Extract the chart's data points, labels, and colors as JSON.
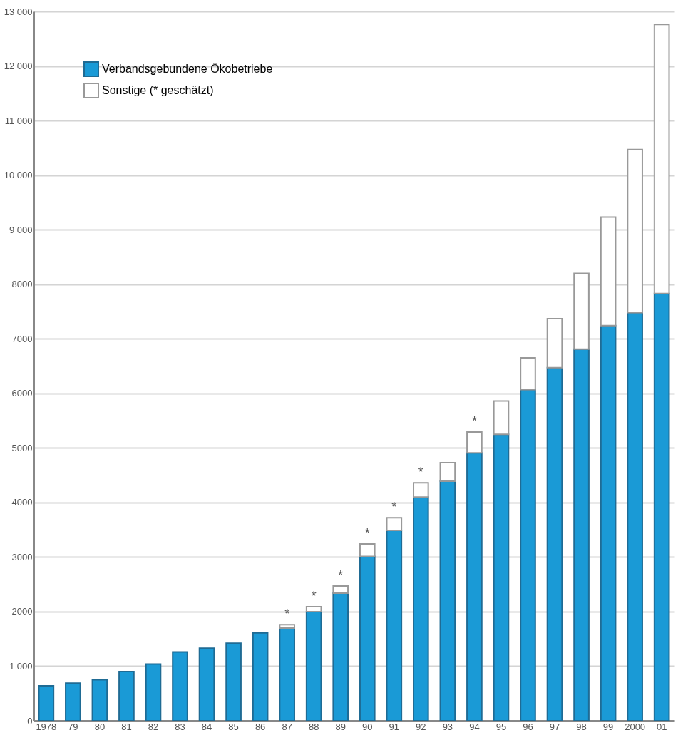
{
  "chart_data": {
    "type": "bar",
    "stacked": true,
    "categories": [
      "1978",
      "79",
      "80",
      "81",
      "82",
      "83",
      "84",
      "85",
      "86",
      "87",
      "88",
      "89",
      "90",
      "91",
      "92",
      "93",
      "94",
      "95",
      "96",
      "97",
      "98",
      "99",
      "2000",
      "01"
    ],
    "series": [
      {
        "name": "Verbandsgebundene Ökobetriebe",
        "color": "#1a9ad6",
        "values": [
          640,
          690,
          750,
          900,
          1040,
          1260,
          1330,
          1420,
          1610,
          1700,
          2000,
          2340,
          3010,
          3490,
          4100,
          4390,
          4910,
          5250,
          6070,
          6470,
          6810,
          7240,
          7480,
          7830
        ]
      },
      {
        "name": "Sonstige (* geschätzt)",
        "color": "#ffffff",
        "values": [
          null,
          null,
          null,
          null,
          null,
          null,
          null,
          null,
          null,
          60,
          90,
          130,
          230,
          230,
          260,
          340,
          380,
          610,
          580,
          900,
          1390,
          1990,
          2990,
          4930
        ]
      }
    ],
    "ylim": [
      0,
      13000
    ],
    "yticks": [
      0,
      {
        "value": 1000,
        "label": "1 000"
      },
      2000,
      3000,
      4000,
      5000,
      6000,
      7000,
      8000,
      {
        "value": 9000,
        "label": "9 000"
      },
      {
        "value": 10000,
        "label": "10 000"
      },
      {
        "value": 11000,
        "label": "11 000"
      },
      {
        "value": 12000,
        "label": "12 000"
      },
      {
        "value": 13000,
        "label": "13 000"
      }
    ],
    "grid": "y",
    "legend": "top left",
    "annotations": [
      {
        "text": "*",
        "x": "87",
        "y": 1760
      },
      {
        "text": "*",
        "x": "88",
        "y": 2090
      },
      {
        "text": "*",
        "x": "89",
        "y": 2470
      },
      {
        "text": "*",
        "x": "90",
        "y": 3240
      },
      {
        "text": "*",
        "x": "91",
        "y": 3720
      },
      {
        "text": "*",
        "x": "92",
        "y": 4360
      },
      {
        "text": "*",
        "x": "94",
        "y": 5290
      }
    ]
  }
}
